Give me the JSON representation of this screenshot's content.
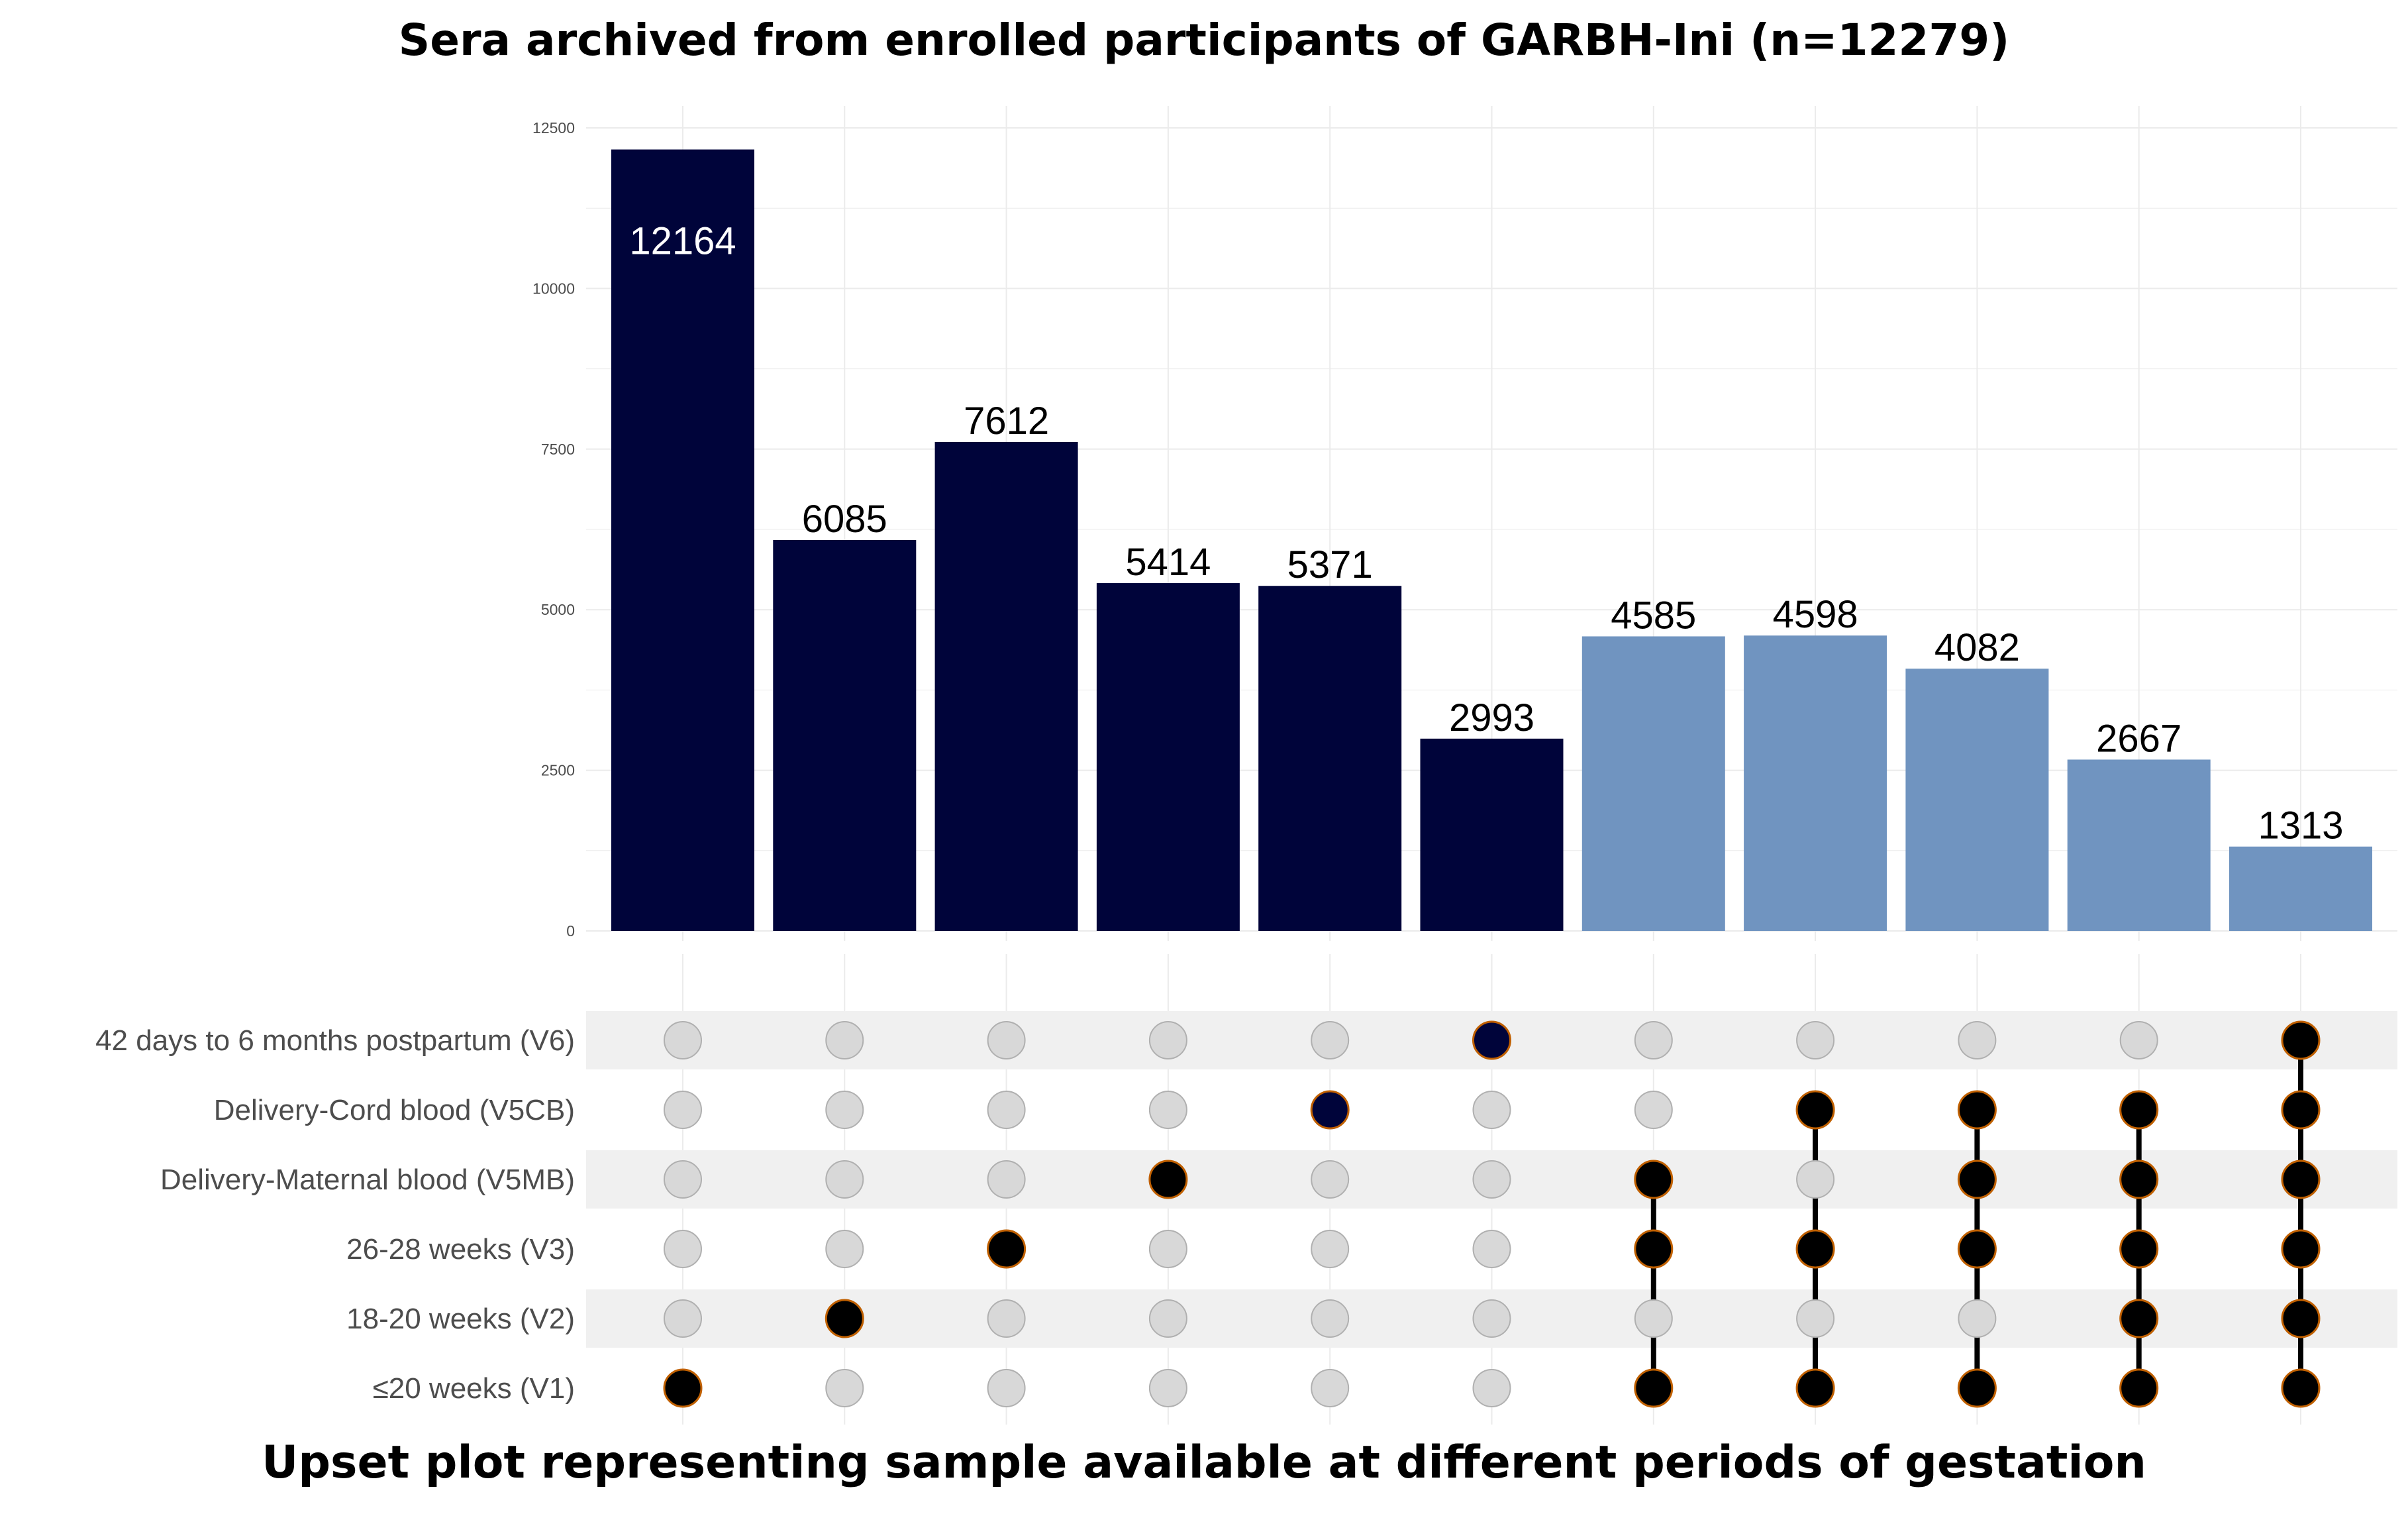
{
  "title": "Sera archived from enrolled participants of GARBH-Ini (n=12279)",
  "caption": "Upset plot representing sample available at different periods of gestation",
  "colors": {
    "dark_bar": "#00043A",
    "light_bar": "#7094C0",
    "dot_inactive": "#D8D8D8",
    "dot_inactive_stroke": "#B0B0B0",
    "dot_active": "#000000",
    "dot_active_stroke": "#C06000",
    "dot_active_single": "#00043A",
    "stripe": "#F0F0F0",
    "grid": "#EBEBEB",
    "tick_text": "#4D4D4D",
    "set_label_text": "#4D4D4D"
  },
  "chart_data": {
    "type": "bar",
    "subtype": "upset",
    "title": "Sera archived from enrolled participants of GARBH-Ini (n=12279)",
    "xlabel": "",
    "ylabel": "",
    "ylim": [
      0,
      12500
    ],
    "yticks": [
      0,
      2500,
      5000,
      7500,
      10000,
      12500
    ],
    "grid": true,
    "sets": [
      "42 days to 6 months postpartum (V6)",
      "Delivery-Cord blood (V5CB)",
      "Delivery-Maternal blood (V5MB)",
      "26-28 weeks (V3)",
      "18-20 weeks (V2)",
      "≤20 weeks (V1)"
    ],
    "intersections": [
      {
        "value": 12164,
        "group": "single",
        "members": [
          "≤20 weeks (V1)"
        ]
      },
      {
        "value": 6085,
        "group": "single",
        "members": [
          "18-20 weeks (V2)"
        ]
      },
      {
        "value": 7612,
        "group": "single",
        "members": [
          "26-28 weeks (V3)"
        ]
      },
      {
        "value": 5414,
        "group": "single",
        "members": [
          "Delivery-Maternal blood (V5MB)"
        ]
      },
      {
        "value": 5371,
        "group": "single",
        "members": [
          "Delivery-Cord blood (V5CB)"
        ]
      },
      {
        "value": 2993,
        "group": "single",
        "members": [
          "42 days to 6 months postpartum (V6)"
        ]
      },
      {
        "value": 4585,
        "group": "combo",
        "members": [
          "Delivery-Maternal blood (V5MB)",
          "26-28 weeks (V3)",
          "≤20 weeks (V1)"
        ]
      },
      {
        "value": 4598,
        "group": "combo",
        "members": [
          "Delivery-Cord blood (V5CB)",
          "26-28 weeks (V3)",
          "≤20 weeks (V1)"
        ]
      },
      {
        "value": 4082,
        "group": "combo",
        "members": [
          "Delivery-Cord blood (V5CB)",
          "Delivery-Maternal blood (V5MB)",
          "26-28 weeks (V3)",
          "≤20 weeks (V1)"
        ]
      },
      {
        "value": 2667,
        "group": "combo",
        "members": [
          "Delivery-Cord blood (V5CB)",
          "Delivery-Maternal blood (V5MB)",
          "26-28 weeks (V3)",
          "18-20 weeks (V2)",
          "≤20 weeks (V1)"
        ]
      },
      {
        "value": 1313,
        "group": "combo",
        "members": [
          "42 days to 6 months postpartum (V6)",
          "Delivery-Cord blood (V5CB)",
          "Delivery-Maternal blood (V5MB)",
          "26-28 weeks (V3)",
          "18-20 weeks (V2)",
          "≤20 weeks (V1)"
        ]
      }
    ]
  }
}
